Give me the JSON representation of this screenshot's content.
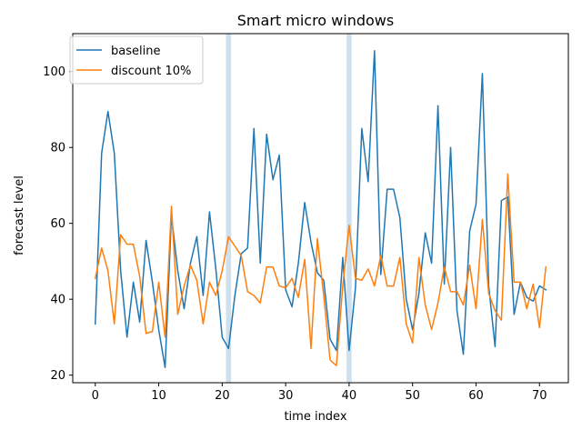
{
  "chart_data": {
    "type": "line",
    "title": "Smart micro windows",
    "xlabel": "time index",
    "ylabel": "forecast level",
    "xlim": [
      -3.55,
      74.55
    ],
    "ylim": [
      18.0,
      110.0
    ],
    "xticks": [
      0,
      10,
      20,
      30,
      40,
      50,
      60,
      70
    ],
    "yticks": [
      20,
      40,
      60,
      80,
      100
    ],
    "grid": false,
    "legend": "upper-left",
    "highlight_spans": [
      [
        20.6,
        21.4
      ],
      [
        39.6,
        40.4
      ]
    ],
    "highlight_color": "#a6c6e0",
    "x": [
      0,
      1,
      2,
      3,
      4,
      5,
      6,
      7,
      8,
      9,
      10,
      11,
      12,
      13,
      14,
      15,
      16,
      17,
      18,
      19,
      20,
      21,
      22,
      23,
      24,
      25,
      26,
      27,
      28,
      29,
      30,
      31,
      32,
      33,
      34,
      35,
      36,
      37,
      38,
      39,
      40,
      41,
      42,
      43,
      44,
      45,
      46,
      47,
      48,
      49,
      50,
      51,
      52,
      53,
      54,
      55,
      56,
      57,
      58,
      59,
      60,
      61,
      62,
      63,
      64,
      65,
      66,
      67,
      68,
      69,
      70,
      71
    ],
    "series": [
      {
        "name": "baseline",
        "color": "#1f77b4",
        "values": [
          33.5,
          78.5,
          89.5,
          78.5,
          47.5,
          30.0,
          44.5,
          34.0,
          55.5,
          44.5,
          32.0,
          22.0,
          62.0,
          47.5,
          37.5,
          49.5,
          56.5,
          41.0,
          63.0,
          48.0,
          30.0,
          27.0,
          41.0,
          52.0,
          53.5,
          85.0,
          49.5,
          83.5,
          71.5,
          78.0,
          42.5,
          38.0,
          49.5,
          65.5,
          55.0,
          47.0,
          45.0,
          29.5,
          26.5,
          51.0,
          26.5,
          43.0,
          85.0,
          71.0,
          105.5,
          46.5,
          69.0,
          69.0,
          61.5,
          40.0,
          32.0,
          41.5,
          57.5,
          49.5,
          91.0,
          44.0,
          80.0,
          37.0,
          25.5,
          58.0,
          65.0,
          99.5,
          43.5,
          27.5,
          66.0,
          67.0,
          36.0,
          44.5,
          40.5,
          39.5,
          43.5,
          42.5
        ]
      },
      {
        "name": "discount 10%",
        "color": "#ff7f0e",
        "values": [
          45.5,
          53.5,
          47.5,
          33.5,
          57.0,
          54.5,
          54.5,
          46.0,
          31.0,
          31.5,
          44.5,
          30.0,
          64.5,
          36.0,
          43.5,
          49.0,
          45.0,
          33.5,
          44.5,
          41.0,
          47.5,
          56.5,
          54.0,
          51.5,
          42.0,
          41.0,
          39.0,
          48.5,
          48.5,
          43.5,
          43.0,
          45.5,
          40.5,
          50.5,
          27.0,
          56.0,
          41.0,
          24.0,
          22.5,
          43.5,
          59.5,
          45.5,
          45.0,
          48.0,
          43.5,
          51.5,
          43.5,
          43.5,
          51.0,
          33.5,
          28.5,
          51.0,
          38.5,
          32.0,
          39.0,
          48.5,
          42.0,
          42.0,
          38.5,
          49.0,
          37.5,
          61.0,
          41.5,
          37.0,
          34.5,
          73.0,
          44.5,
          44.5,
          37.5,
          44.0,
          32.5,
          48.5
        ]
      }
    ]
  }
}
